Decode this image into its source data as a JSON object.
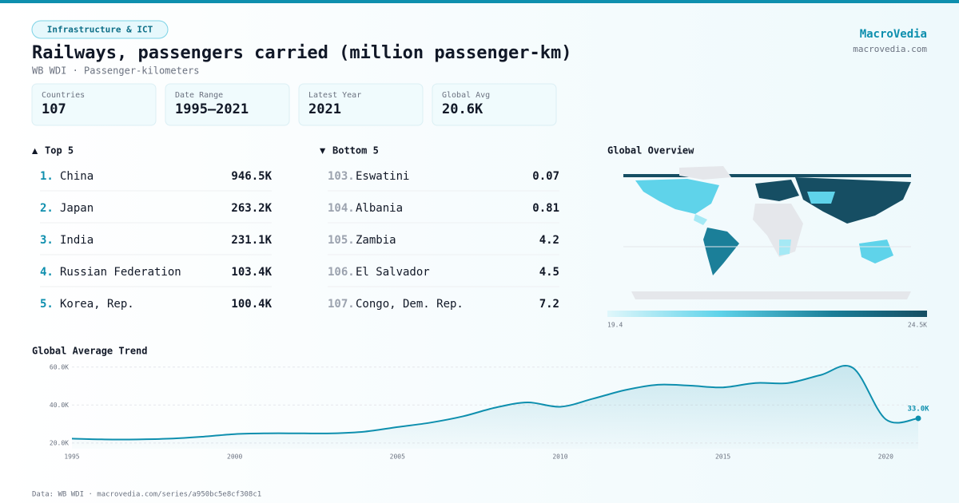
{
  "header": {
    "tag": "Infrastructure & ICT",
    "title": "Railways, passengers carried (million passenger-km)",
    "subtitle": "WB WDI · Passenger-kilometers",
    "brand": "MacroVedia",
    "site": "macrovedia.com"
  },
  "stats": [
    {
      "label": "Countries",
      "value": "107"
    },
    {
      "label": "Date Range",
      "value": "1995–2021"
    },
    {
      "label": "Latest Year",
      "value": "2021"
    },
    {
      "label": "Global Avg",
      "value": "20.6K"
    }
  ],
  "top": {
    "title": "Top 5",
    "rows": [
      {
        "rank": "1.",
        "name": "China",
        "value": "946.5K"
      },
      {
        "rank": "2.",
        "name": "Japan",
        "value": "263.2K"
      },
      {
        "rank": "3.",
        "name": "India",
        "value": "231.1K"
      },
      {
        "rank": "4.",
        "name": "Russian Federation",
        "value": "103.4K"
      },
      {
        "rank": "5.",
        "name": "Korea, Rep.",
        "value": "100.4K"
      }
    ]
  },
  "bottom": {
    "title": "Bottom 5",
    "rows": [
      {
        "rank": "103.",
        "name": "Eswatini",
        "value": "0.07"
      },
      {
        "rank": "104.",
        "name": "Albania",
        "value": "0.81"
      },
      {
        "rank": "105.",
        "name": "Zambia",
        "value": "4.2"
      },
      {
        "rank": "106.",
        "name": "El Salvador",
        "value": "4.5"
      },
      {
        "rank": "107.",
        "name": "Congo, Dem. Rep.",
        "value": "7.2"
      }
    ]
  },
  "map": {
    "title": "Global Overview",
    "legend_min": "19.4",
    "legend_max": "24.5K"
  },
  "trend": {
    "type": "line",
    "title": "Global Average Trend",
    "color": "#0e8fae",
    "x": [
      1995,
      1996,
      1997,
      1998,
      1999,
      2000,
      2001,
      2002,
      2003,
      2004,
      2005,
      2006,
      2007,
      2008,
      2009,
      2010,
      2011,
      2012,
      2013,
      2014,
      2015,
      2016,
      2017,
      2018,
      2019,
      2020,
      2021
    ],
    "values": [
      22300,
      21900,
      21900,
      22300,
      23300,
      24700,
      25100,
      25100,
      25100,
      26000,
      28400,
      30700,
      34000,
      38600,
      41400,
      39100,
      43300,
      47900,
      50700,
      50200,
      49300,
      51600,
      51600,
      55800,
      59500,
      32500,
      33000
    ],
    "value_labels": [
      null,
      null,
      null,
      null,
      null,
      null,
      null,
      null,
      null,
      null,
      null,
      null,
      null,
      null,
      null,
      null,
      null,
      null,
      null,
      null,
      null,
      null,
      null,
      null,
      null,
      null,
      "33.0K"
    ],
    "xlim": [
      1995,
      2021
    ],
    "xticks": [
      1995,
      2000,
      2005,
      2010,
      2015,
      2020
    ],
    "ylim": [
      17000,
      62000
    ],
    "yticks": [
      {
        "value": 20000,
        "label": "20.0K"
      },
      {
        "value": 40000,
        "label": "40.0K"
      },
      {
        "value": 60000,
        "label": "60.0K"
      }
    ],
    "grid": true
  },
  "footer": "Data: WB WDI · macrovedia.com/series/a950bc5e8cf308c1"
}
